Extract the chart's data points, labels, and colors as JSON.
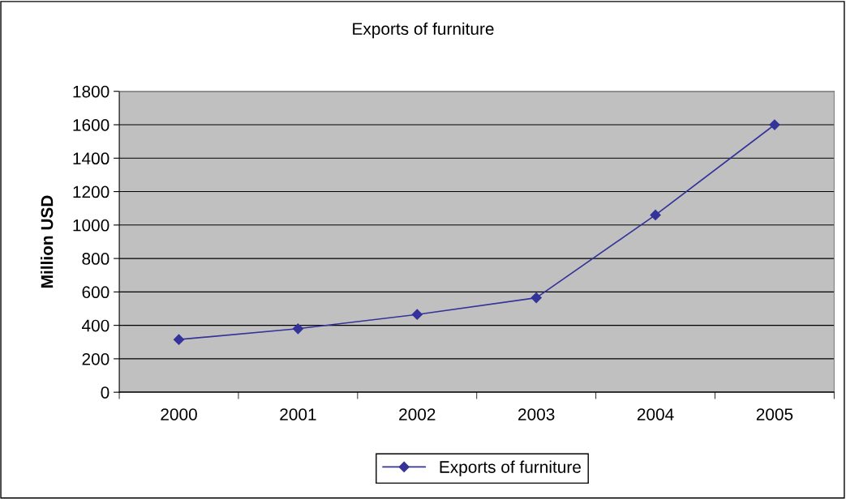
{
  "chart_data": {
    "type": "line",
    "title": "Exports of furniture",
    "ylabel": "Million USD",
    "categories": [
      "2000",
      "2001",
      "2002",
      "2003",
      "2004",
      "2005"
    ],
    "series": [
      {
        "name": "Exports of furniture",
        "color": "#333399",
        "values": [
          315,
          380,
          465,
          565,
          1060,
          1600
        ]
      }
    ],
    "ylim": [
      0,
      1800
    ],
    "yticks": [
      0,
      200,
      400,
      600,
      800,
      1000,
      1200,
      1400,
      1600,
      1800
    ],
    "grid": "y",
    "legend": "bottom",
    "marker": "diamond",
    "line_style": "solid"
  }
}
